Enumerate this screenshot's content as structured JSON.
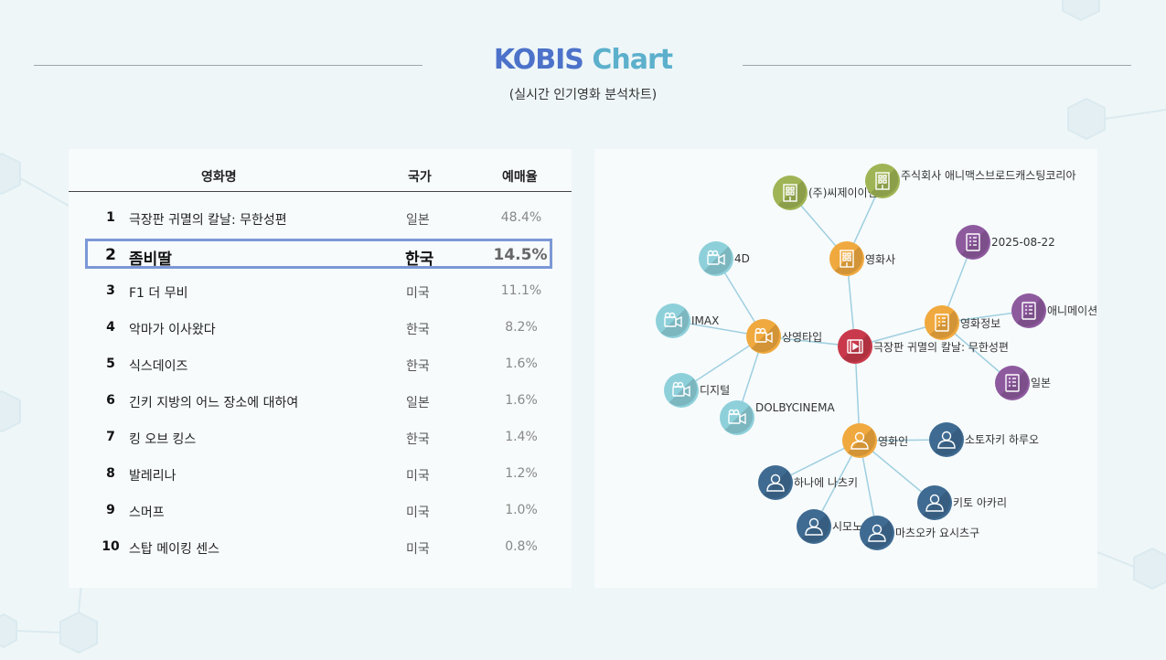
{
  "header": {
    "title_part1": "KOBIS",
    "title_part2": "Chart",
    "subtitle": "(실시간 인기영화 분석차트)"
  },
  "table": {
    "columns": [
      "영화명",
      "국가",
      "예매율"
    ],
    "rows": [
      {
        "rank": "1",
        "title": "극장판 귀멸의 칼날: 무한성편",
        "country": "일본",
        "rate": "48.4%"
      },
      {
        "rank": "2",
        "title": "좀비딸",
        "country": "한국",
        "rate": "14.5%"
      },
      {
        "rank": "3",
        "title": "F1 더 무비",
        "country": "미국",
        "rate": "11.1%"
      },
      {
        "rank": "4",
        "title": "악마가 이사왔다",
        "country": "한국",
        "rate": "8.2%"
      },
      {
        "rank": "5",
        "title": "식스데이즈",
        "country": "한국",
        "rate": "1.6%"
      },
      {
        "rank": "6",
        "title": "긴키 지방의 어느 장소에 대하여",
        "country": "일본",
        "rate": "1.6%"
      },
      {
        "rank": "7",
        "title": "킹 오브 킹스",
        "country": "한국",
        "rate": "1.4%"
      },
      {
        "rank": "8",
        "title": "발레리나",
        "country": "미국",
        "rate": "1.2%"
      },
      {
        "rank": "9",
        "title": "스머프",
        "country": "미국",
        "rate": "1.0%"
      },
      {
        "rank": "10",
        "title": "스탑 메이킹 센스",
        "country": "미국",
        "rate": "0.8%"
      }
    ],
    "highlighted_rank": "2"
  },
  "graph": {
    "colors": {
      "center": "#c9394b",
      "category": "#f0a93e",
      "company": "#9fb454",
      "info": "#8e5a9e",
      "screen": "#8ed0da",
      "person": "#3f6b92",
      "edge": "#9fcfe0"
    },
    "nodes": [
      {
        "id": "center",
        "label": "극장판 귀멸의 칼날: 무한성편",
        "type": "center",
        "icon": "film-icon"
      },
      {
        "id": "company",
        "label": "영화사",
        "type": "category",
        "icon": "building-icon"
      },
      {
        "id": "info",
        "label": "영화정보",
        "type": "category",
        "icon": "document-icon"
      },
      {
        "id": "screen",
        "label": "상영타입",
        "type": "category",
        "icon": "camera-icon"
      },
      {
        "id": "people",
        "label": "영화인",
        "type": "category",
        "icon": "person-icon"
      },
      {
        "id": "c1",
        "label": "(주)씨제이이엔엠",
        "type": "company",
        "icon": "building-icon"
      },
      {
        "id": "c2",
        "label": "주식회사 애니맥스브로드캐스팅코리아",
        "type": "company",
        "icon": "building-icon"
      },
      {
        "id": "i1",
        "label": "2025-08-22",
        "type": "info",
        "icon": "document-icon"
      },
      {
        "id": "i2",
        "label": "애니메이션",
        "type": "info",
        "icon": "document-icon"
      },
      {
        "id": "i3",
        "label": "일본",
        "type": "info",
        "icon": "document-icon"
      },
      {
        "id": "s1",
        "label": "4D",
        "type": "screen",
        "icon": "camera-icon"
      },
      {
        "id": "s2",
        "label": "IMAX",
        "type": "screen",
        "icon": "camera-icon"
      },
      {
        "id": "s3",
        "label": "디지털",
        "type": "screen",
        "icon": "camera-icon"
      },
      {
        "id": "s4",
        "label": "DOLBYCINEMA",
        "type": "screen",
        "icon": "camera-icon"
      },
      {
        "id": "p1",
        "label": "소토자키 하루오",
        "type": "person",
        "icon": "person-icon"
      },
      {
        "id": "p2",
        "label": "하나에 나츠키",
        "type": "person",
        "icon": "person-icon"
      },
      {
        "id": "p3",
        "label": "키토 아카리",
        "type": "person",
        "icon": "person-icon"
      },
      {
        "id": "p4",
        "label": "시모노 히로",
        "type": "person",
        "icon": "person-icon"
      },
      {
        "id": "p5",
        "label": "마츠오카 요시츠구",
        "type": "person",
        "icon": "person-icon"
      }
    ],
    "edges": [
      [
        "center",
        "company"
      ],
      [
        "center",
        "info"
      ],
      [
        "center",
        "screen"
      ],
      [
        "center",
        "people"
      ],
      [
        "company",
        "c1"
      ],
      [
        "company",
        "c2"
      ],
      [
        "info",
        "i1"
      ],
      [
        "info",
        "i2"
      ],
      [
        "info",
        "i3"
      ],
      [
        "screen",
        "s1"
      ],
      [
        "screen",
        "s2"
      ],
      [
        "screen",
        "s3"
      ],
      [
        "screen",
        "s4"
      ],
      [
        "people",
        "p1"
      ],
      [
        "people",
        "p2"
      ],
      [
        "people",
        "p3"
      ],
      [
        "people",
        "p4"
      ],
      [
        "people",
        "p5"
      ]
    ]
  }
}
